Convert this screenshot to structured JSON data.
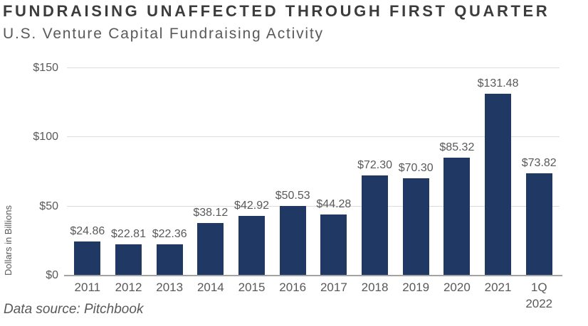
{
  "header": {
    "title": "FUNDRAISING UNAFFECTED THROUGH FIRST QUARTER",
    "subtitle": "U.S. Venture Capital Fundraising Activity"
  },
  "footer": {
    "source_note": "Data source: Pitchbook"
  },
  "chart_data": {
    "type": "bar",
    "title": "FUNDRAISING UNAFFECTED THROUGH FIRST QUARTER",
    "subtitle": "U.S. Venture Capital Fundraising Activity",
    "categories": [
      "2011",
      "2012",
      "2013",
      "2014",
      "2015",
      "2016",
      "2017",
      "2018",
      "2019",
      "2020",
      "2021",
      "1Q\n2022"
    ],
    "values": [
      24.86,
      22.81,
      22.36,
      38.12,
      42.92,
      50.53,
      44.28,
      72.3,
      70.3,
      85.32,
      131.48,
      73.82
    ],
    "value_labels": [
      "$24.86",
      "$22.81",
      "$22.36",
      "$38.12",
      "$42.92",
      "$50.53",
      "$44.28",
      "$72.30",
      "$70.30",
      "$85.32",
      "$131.48",
      "$73.82"
    ],
    "xlabel": "",
    "ylabel": "Dollars in Billions",
    "ylim": [
      0,
      150
    ],
    "ytick_values": [
      0,
      50,
      100,
      150
    ],
    "ytick_labels": [
      "$0",
      "$50",
      "$100",
      "$150"
    ],
    "grid": true,
    "legend": "none",
    "bar_color": "#1f3864",
    "label_color": "#595959"
  }
}
